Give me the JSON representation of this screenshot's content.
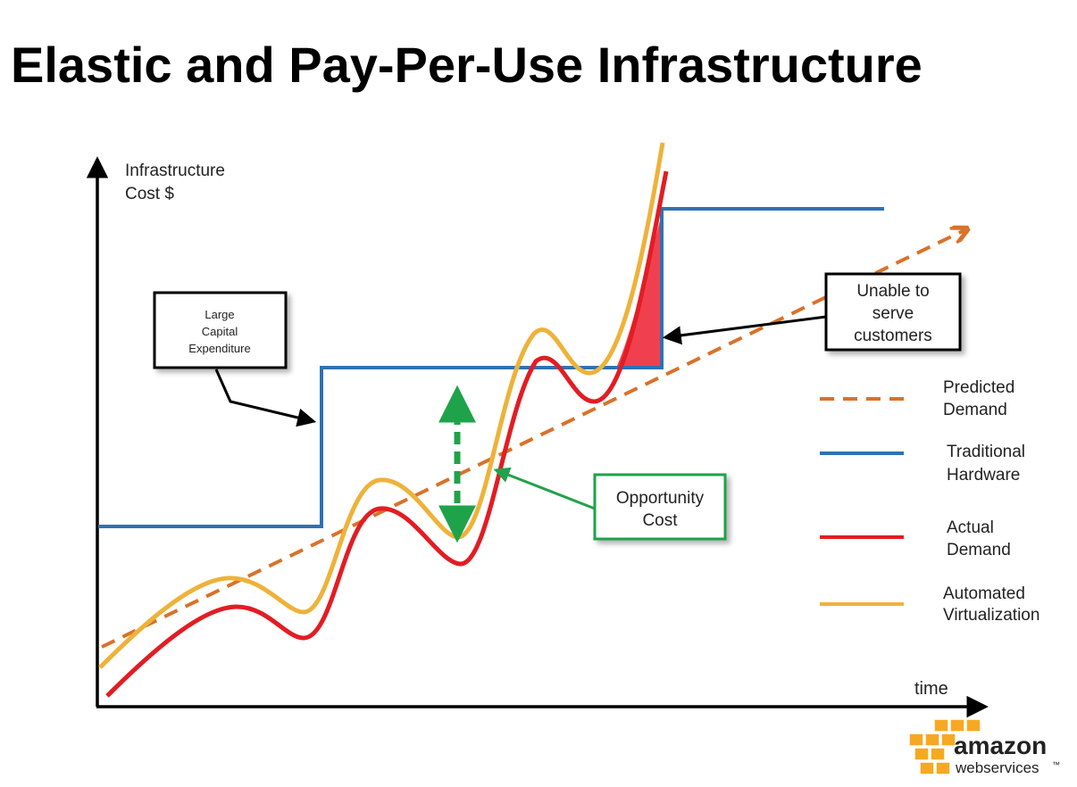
{
  "title": "Elastic and Pay-Per-Use Infrastructure",
  "colors": {
    "predicted": "#d9722a",
    "traditional": "#2f72b4",
    "actual": "#e21d23",
    "automated": "#eeb23a",
    "opportunity": "#1fa34a",
    "unserved": "#f04050",
    "logo": "#f7a823"
  },
  "chart_data": {
    "type": "line",
    "y_axis_label": [
      "Infrastructure",
      "Cost $"
    ],
    "x_axis_label": "time",
    "legend_placement": "right",
    "grid": false,
    "series": [
      {
        "name": [
          "Predicted",
          "Demand"
        ],
        "style": "dashed",
        "color": "#d9722a"
      },
      {
        "name": [
          "Traditional",
          "Hardware"
        ],
        "style": "solid",
        "color": "#2f72b4"
      },
      {
        "name": [
          "Actual",
          "Demand"
        ],
        "style": "solid",
        "color": "#e21d23"
      },
      {
        "name": [
          "Automated",
          "Virtualization"
        ],
        "style": "solid",
        "color": "#eeb23a"
      }
    ],
    "annotations": [
      {
        "id": "capex",
        "text": [
          "Large",
          "Capital",
          "Expenditure"
        ]
      },
      {
        "id": "opportunity",
        "text": [
          "Opportunity",
          "Cost"
        ]
      },
      {
        "id": "unable",
        "text": [
          "Unable to",
          "serve",
          "customers"
        ]
      }
    ]
  },
  "logo": {
    "word1": "amazon",
    "word2": "webservices",
    "tm": "™"
  }
}
